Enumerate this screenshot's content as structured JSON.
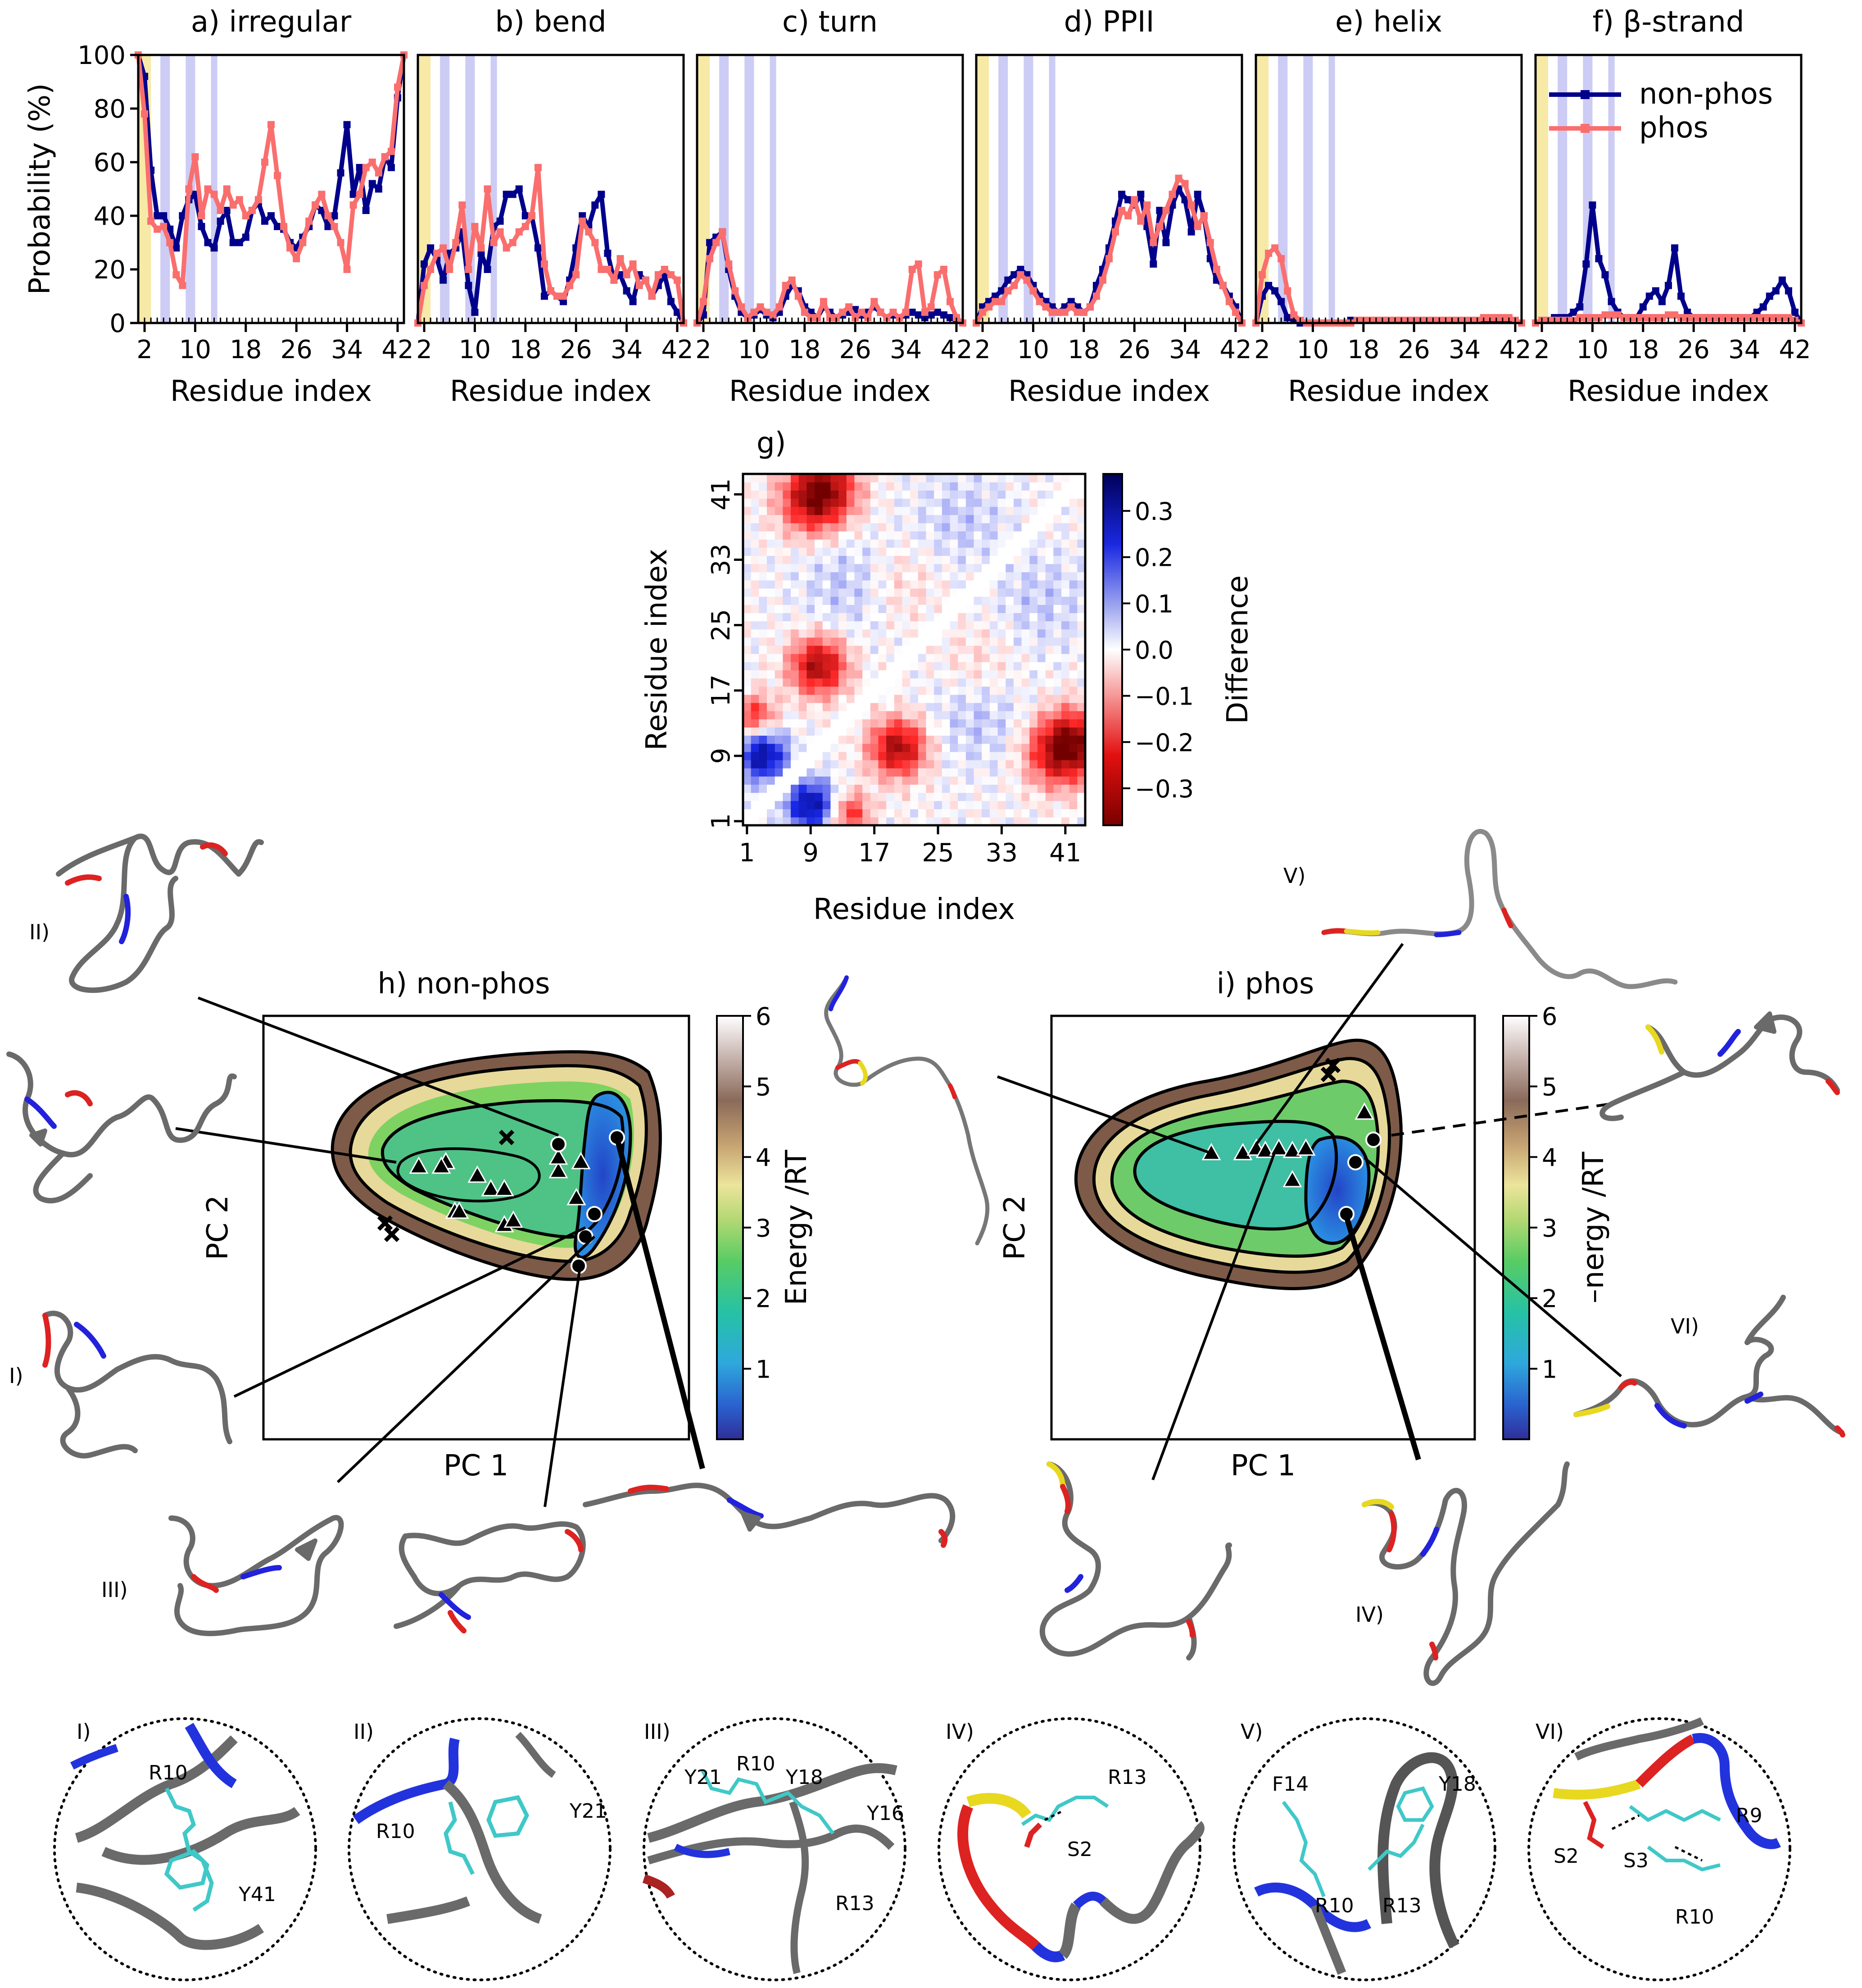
{
  "figure": {
    "panel_titles": [
      "a) irregular",
      "b) bend",
      "c) turn",
      "d) PPII",
      "e) helix",
      "f) β-strand"
    ],
    "g_label": "g)",
    "h_title": "h) non-phos",
    "i_title": "i) phos",
    "pc1": "PC 1",
    "pc2": "PC 2",
    "energy_label": "Energy /RT",
    "energy_label_i": "–nergy /RT",
    "energy_ticks": [
      "6",
      "5",
      "4",
      "3",
      "2",
      "1"
    ],
    "diff_label": "Difference",
    "diff_ticks": [
      "0.3",
      "0.2",
      "0.1",
      "0.0",
      "−0.1",
      "−0.2",
      "−0.3"
    ],
    "structure_labels": [
      "I)",
      "II)",
      "III)",
      "IV)",
      "V)",
      "VI)"
    ],
    "inset_labels": [
      "I)",
      "II)",
      "III)",
      "IV)",
      "V)",
      "VI)"
    ],
    "residue_labels": {
      "I": [
        "R10",
        "Y41"
      ],
      "II": [
        "R10",
        "Y21"
      ],
      "III": [
        "Y21",
        "R10",
        "Y18",
        "Y16",
        "R13"
      ],
      "IV": [
        "R13",
        "S2"
      ],
      "V": [
        "F14",
        "Y18",
        "R10",
        "R13"
      ],
      "VI": [
        "R9",
        "S2",
        "S3",
        "R10"
      ]
    },
    "colors": {
      "non_phos": "#00008b",
      "phos": "#fa6e6e",
      "yellow_band": "#f7e9a6",
      "blue_band": "#ccccf5"
    }
  },
  "chart_data": [
    {
      "type": "line",
      "panel": "a) irregular",
      "xlabel": "Residue index",
      "ylabel": "Probability (%)",
      "ylim": [
        0,
        100
      ],
      "xticks": [
        "2",
        "10",
        "18",
        "26",
        "34",
        "42"
      ],
      "yticks": [
        "0",
        "20",
        "40",
        "60",
        "80",
        "100"
      ],
      "x": [
        1,
        2,
        3,
        4,
        5,
        6,
        7,
        8,
        9,
        10,
        11,
        12,
        13,
        14,
        15,
        16,
        17,
        18,
        19,
        20,
        21,
        22,
        23,
        24,
        25,
        26,
        27,
        28,
        29,
        30,
        31,
        32,
        33,
        34,
        35,
        36,
        37,
        38,
        39,
        40,
        41,
        42,
        43
      ],
      "series": [
        {
          "name": "non-phos",
          "values": [
            100,
            92,
            57,
            40,
            40,
            35,
            28,
            40,
            46,
            48,
            36,
            30,
            28,
            38,
            42,
            30,
            30,
            32,
            42,
            45,
            38,
            40,
            36,
            35,
            30,
            28,
            32,
            36,
            44,
            42,
            36,
            40,
            56,
            74,
            48,
            58,
            42,
            52,
            50,
            62,
            58,
            84,
            100
          ]
        },
        {
          "name": "phos",
          "values": [
            100,
            78,
            38,
            35,
            36,
            30,
            18,
            14,
            50,
            62,
            40,
            50,
            48,
            42,
            50,
            44,
            46,
            40,
            42,
            46,
            60,
            74,
            55,
            36,
            28,
            24,
            30,
            38,
            44,
            48,
            40,
            36,
            30,
            20,
            44,
            48,
            58,
            60,
            56,
            62,
            64,
            88,
            100
          ]
        }
      ]
    },
    {
      "type": "line",
      "panel": "b) bend",
      "xlabel": "Residue index",
      "ylim": [
        0,
        100
      ],
      "xticks": [
        "2",
        "10",
        "18",
        "26",
        "34",
        "42"
      ],
      "x": [
        1,
        2,
        3,
        4,
        5,
        6,
        7,
        8,
        9,
        10,
        11,
        12,
        13,
        14,
        15,
        16,
        17,
        18,
        19,
        20,
        21,
        22,
        23,
        24,
        25,
        26,
        27,
        28,
        29,
        30,
        31,
        32,
        33,
        34,
        35,
        36,
        37,
        38,
        39,
        40,
        41,
        42,
        43
      ],
      "series": [
        {
          "name": "non-phos",
          "values": [
            0,
            22,
            28,
            24,
            16,
            26,
            28,
            34,
            14,
            4,
            26,
            20,
            36,
            38,
            48,
            48,
            50,
            40,
            40,
            28,
            10,
            12,
            10,
            8,
            16,
            28,
            40,
            36,
            44,
            48,
            26,
            16,
            18,
            12,
            8,
            18,
            16,
            10,
            14,
            18,
            8,
            4,
            0
          ]
        },
        {
          "name": "phos",
          "values": [
            0,
            14,
            20,
            26,
            28,
            20,
            30,
            44,
            20,
            36,
            28,
            50,
            30,
            34,
            28,
            30,
            34,
            36,
            40,
            58,
            22,
            12,
            10,
            10,
            14,
            18,
            38,
            34,
            30,
            20,
            20,
            16,
            24,
            18,
            22,
            14,
            16,
            10,
            18,
            20,
            18,
            16,
            0
          ]
        }
      ]
    },
    {
      "type": "line",
      "panel": "c) turn",
      "xlabel": "Residue index",
      "ylim": [
        0,
        100
      ],
      "xticks": [
        "2",
        "10",
        "18",
        "26",
        "34",
        "42"
      ],
      "x": [
        1,
        2,
        3,
        4,
        5,
        6,
        7,
        8,
        9,
        10,
        11,
        12,
        13,
        14,
        15,
        16,
        17,
        18,
        19,
        20,
        21,
        22,
        23,
        24,
        25,
        26,
        27,
        28,
        29,
        30,
        31,
        32,
        33,
        34,
        35,
        36,
        37,
        38,
        39,
        40,
        41,
        42,
        43
      ],
      "series": [
        {
          "name": "non-phos",
          "values": [
            0,
            3,
            30,
            32,
            34,
            20,
            10,
            4,
            2,
            3,
            5,
            3,
            2,
            4,
            10,
            14,
            12,
            6,
            4,
            2,
            6,
            4,
            2,
            3,
            4,
            5,
            3,
            4,
            6,
            4,
            2,
            3,
            2,
            3,
            4,
            3,
            2,
            3,
            4,
            3,
            2,
            1,
            0
          ]
        },
        {
          "name": "phos",
          "values": [
            0,
            8,
            24,
            30,
            34,
            22,
            12,
            6,
            2,
            4,
            6,
            4,
            3,
            6,
            14,
            16,
            10,
            4,
            2,
            2,
            8,
            2,
            2,
            4,
            6,
            2,
            4,
            2,
            8,
            4,
            2,
            4,
            2,
            4,
            20,
            22,
            4,
            6,
            18,
            20,
            8,
            2,
            0
          ]
        }
      ]
    },
    {
      "type": "line",
      "panel": "d) PPII",
      "xlabel": "Residue index",
      "ylim": [
        0,
        100
      ],
      "xticks": [
        "2",
        "10",
        "18",
        "26",
        "34",
        "42"
      ],
      "x": [
        1,
        2,
        3,
        4,
        5,
        6,
        7,
        8,
        9,
        10,
        11,
        12,
        13,
        14,
        15,
        16,
        17,
        18,
        19,
        20,
        21,
        22,
        23,
        24,
        25,
        26,
        27,
        28,
        29,
        30,
        31,
        32,
        33,
        34,
        35,
        36,
        37,
        38,
        39,
        40,
        41,
        42,
        43
      ],
      "series": [
        {
          "name": "non-phos",
          "values": [
            0,
            6,
            8,
            10,
            12,
            16,
            18,
            20,
            18,
            14,
            10,
            8,
            6,
            4,
            6,
            8,
            6,
            4,
            6,
            14,
            20,
            28,
            38,
            48,
            46,
            44,
            48,
            36,
            22,
            42,
            30,
            44,
            50,
            46,
            34,
            48,
            40,
            24,
            16,
            14,
            10,
            6,
            0
          ]
        },
        {
          "name": "phos",
          "values": [
            0,
            4,
            6,
            8,
            8,
            12,
            14,
            18,
            16,
            12,
            8,
            6,
            4,
            4,
            4,
            6,
            4,
            4,
            6,
            10,
            16,
            24,
            34,
            42,
            40,
            46,
            38,
            44,
            30,
            36,
            42,
            48,
            54,
            52,
            44,
            36,
            40,
            30,
            20,
            14,
            8,
            4,
            0
          ]
        }
      ]
    },
    {
      "type": "line",
      "panel": "e) helix",
      "xlabel": "Residue index",
      "ylim": [
        0,
        100
      ],
      "xticks": [
        "2",
        "10",
        "18",
        "26",
        "34",
        "42"
      ],
      "x": [
        1,
        2,
        3,
        4,
        5,
        6,
        7,
        8,
        9,
        10,
        11,
        12,
        13,
        14,
        15,
        16,
        17,
        18,
        19,
        20,
        21,
        22,
        23,
        24,
        25,
        26,
        27,
        28,
        29,
        30,
        31,
        32,
        33,
        34,
        35,
        36,
        37,
        38,
        39,
        40,
        41,
        42,
        43
      ],
      "series": [
        {
          "name": "non-phos",
          "values": [
            0,
            10,
            14,
            12,
            8,
            2,
            1,
            0,
            0,
            0,
            0,
            0,
            0,
            0,
            0,
            1,
            1,
            1,
            1,
            1,
            1,
            1,
            1,
            1,
            1,
            1,
            1,
            1,
            1,
            1,
            1,
            1,
            1,
            1,
            1,
            1,
            1,
            1,
            1,
            1,
            1,
            1,
            0
          ]
        },
        {
          "name": "phos",
          "values": [
            0,
            18,
            26,
            28,
            24,
            12,
            3,
            1,
            0,
            0,
            0,
            0,
            0,
            0,
            0,
            0,
            1,
            1,
            1,
            1,
            1,
            1,
            1,
            1,
            1,
            1,
            1,
            1,
            1,
            1,
            1,
            1,
            1,
            1,
            1,
            1,
            2,
            2,
            2,
            2,
            2,
            1,
            0
          ]
        }
      ]
    },
    {
      "type": "line",
      "panel": "f) β-strand",
      "xlabel": "Residue index",
      "ylim": [
        0,
        100
      ],
      "xticks": [
        "2",
        "10",
        "18",
        "26",
        "34",
        "42"
      ],
      "legend": "top-right",
      "x": [
        1,
        2,
        3,
        4,
        5,
        6,
        7,
        8,
        9,
        10,
        11,
        12,
        13,
        14,
        15,
        16,
        17,
        18,
        19,
        20,
        21,
        22,
        23,
        24,
        25,
        26,
        27,
        28,
        29,
        30,
        31,
        32,
        33,
        34,
        35,
        36,
        37,
        38,
        39,
        40,
        41,
        42,
        43
      ],
      "series": [
        {
          "name": "non-phos",
          "values": [
            0,
            1,
            1,
            2,
            2,
            2,
            4,
            6,
            22,
            44,
            24,
            18,
            8,
            4,
            2,
            2,
            2,
            6,
            10,
            12,
            8,
            14,
            28,
            10,
            4,
            2,
            2,
            2,
            2,
            2,
            2,
            2,
            2,
            2,
            2,
            4,
            6,
            10,
            12,
            16,
            12,
            4,
            0
          ]
        },
        {
          "name": "phos",
          "values": [
            0,
            1,
            1,
            1,
            1,
            1,
            1,
            2,
            2,
            2,
            2,
            3,
            3,
            3,
            2,
            2,
            2,
            2,
            2,
            2,
            2,
            3,
            3,
            2,
            2,
            2,
            2,
            2,
            2,
            2,
            2,
            2,
            2,
            2,
            2,
            2,
            2,
            2,
            2,
            2,
            2,
            1,
            0
          ]
        }
      ]
    },
    {
      "type": "heatmap",
      "panel": "g)",
      "xlabel": "Residue index",
      "ylabel": "Residue index",
      "xticks": [
        "1",
        "9",
        "17",
        "25",
        "33",
        "41"
      ],
      "yticks": [
        "1",
        "9",
        "17",
        "25",
        "33",
        "41"
      ],
      "colorbar_range": [
        -0.38,
        0.38
      ],
      "colorbar_label": "Difference"
    },
    {
      "type": "heatmap",
      "panel": "h) non-phos",
      "xlabel": "PC 1",
      "ylabel": "PC 2",
      "colorbar_range": [
        0,
        6
      ],
      "colorbar_label": "Energy /RT",
      "colorbar_ticks": [
        "1",
        "2",
        "3",
        "4",
        "5",
        "6"
      ]
    },
    {
      "type": "heatmap",
      "panel": "i) phos",
      "xlabel": "PC 1",
      "ylabel": "PC 2",
      "colorbar_range": [
        0,
        6
      ],
      "colorbar_label": "Energy /RT",
      "colorbar_ticks": [
        "1",
        "2",
        "3",
        "4",
        "5",
        "6"
      ]
    }
  ]
}
